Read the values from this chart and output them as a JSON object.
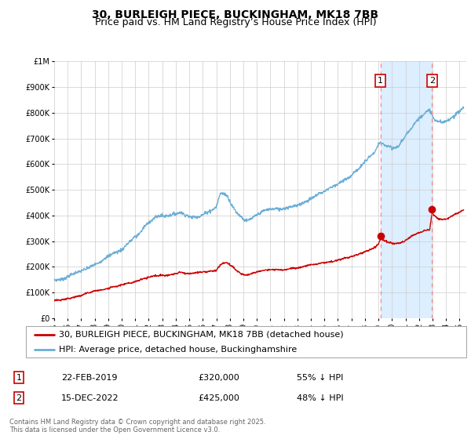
{
  "title": "30, BURLEIGH PIECE, BUCKINGHAM, MK18 7BB",
  "subtitle": "Price paid vs. HM Land Registry’s House Price Index (HPI)",
  "ylim": [
    0,
    1000000
  ],
  "xlim_start": 1995.0,
  "xlim_end": 2025.5,
  "yticks": [
    0,
    100000,
    200000,
    300000,
    400000,
    500000,
    600000,
    700000,
    800000,
    900000,
    1000000
  ],
  "ytick_labels": [
    "£0",
    "£100K",
    "£200K",
    "£300K",
    "£400K",
    "£500K",
    "£600K",
    "£700K",
    "£800K",
    "£900K",
    "£1M"
  ],
  "hpi_color": "#6baed6",
  "price_color": "#cc0000",
  "bg_color": "#ffffff",
  "grid_color": "#cccccc",
  "shade_color": "#ddeeff",
  "dashed_line_color": "#ff8888",
  "point1_year": 2019.14,
  "point2_year": 2022.96,
  "point1_price_marker": 320000,
  "point2_price_marker": 425000,
  "legend_label_red": "30, BURLEIGH PIECE, BUCKINGHAM, MK18 7BB (detached house)",
  "legend_label_blue": "HPI: Average price, detached house, Buckinghamshire",
  "note1_label": "1",
  "note1_date": "22-FEB-2019",
  "note1_price": "£320,000",
  "note1_hpi": "55% ↓ HPI",
  "note2_label": "2",
  "note2_date": "15-DEC-2022",
  "note2_price": "£425,000",
  "note2_hpi": "48% ↓ HPI",
  "copyright_text": "Contains HM Land Registry data © Crown copyright and database right 2025.\nThis data is licensed under the Open Government Licence v3.0.",
  "title_fontsize": 10,
  "subtitle_fontsize": 9,
  "tick_fontsize": 7,
  "legend_fontsize": 8,
  "note_fontsize": 8,
  "hpi_keypoints": [
    [
      1995.0,
      150000
    ],
    [
      1995.5,
      152000
    ],
    [
      1996.0,
      158000
    ],
    [
      1996.5,
      168000
    ],
    [
      1997.0,
      178000
    ],
    [
      1997.5,
      192000
    ],
    [
      1998.0,
      205000
    ],
    [
      1998.5,
      220000
    ],
    [
      1999.0,
      238000
    ],
    [
      1999.5,
      258000
    ],
    [
      2000.0,
      272000
    ],
    [
      2000.5,
      295000
    ],
    [
      2001.0,
      315000
    ],
    [
      2001.5,
      340000
    ],
    [
      2002.0,
      365000
    ],
    [
      2002.5,
      385000
    ],
    [
      2003.0,
      395000
    ],
    [
      2003.5,
      400000
    ],
    [
      2004.0,
      410000
    ],
    [
      2004.3,
      415000
    ],
    [
      2004.6,
      405000
    ],
    [
      2005.0,
      395000
    ],
    [
      2005.5,
      390000
    ],
    [
      2006.0,
      400000
    ],
    [
      2006.5,
      418000
    ],
    [
      2007.0,
      440000
    ],
    [
      2007.3,
      490000
    ],
    [
      2007.8,
      480000
    ],
    [
      2008.0,
      460000
    ],
    [
      2008.5,
      420000
    ],
    [
      2009.0,
      400000
    ],
    [
      2009.3,
      395000
    ],
    [
      2009.6,
      405000
    ],
    [
      2010.0,
      420000
    ],
    [
      2010.5,
      438000
    ],
    [
      2011.0,
      450000
    ],
    [
      2011.5,
      448000
    ],
    [
      2012.0,
      448000
    ],
    [
      2012.5,
      455000
    ],
    [
      2013.0,
      465000
    ],
    [
      2013.5,
      480000
    ],
    [
      2014.0,
      495000
    ],
    [
      2014.5,
      510000
    ],
    [
      2015.0,
      525000
    ],
    [
      2015.5,
      540000
    ],
    [
      2016.0,
      560000
    ],
    [
      2016.5,
      578000
    ],
    [
      2017.0,
      595000
    ],
    [
      2017.5,
      620000
    ],
    [
      2018.0,
      645000
    ],
    [
      2018.5,
      670000
    ],
    [
      2018.8,
      685000
    ],
    [
      2019.0,
      710000
    ],
    [
      2019.14,
      715000
    ],
    [
      2019.5,
      705000
    ],
    [
      2019.8,
      700000
    ],
    [
      2020.0,
      695000
    ],
    [
      2020.3,
      700000
    ],
    [
      2020.6,
      718000
    ],
    [
      2021.0,
      745000
    ],
    [
      2021.5,
      775000
    ],
    [
      2022.0,
      810000
    ],
    [
      2022.5,
      835000
    ],
    [
      2022.8,
      840000
    ],
    [
      2022.96,
      825000
    ],
    [
      2023.0,
      815000
    ],
    [
      2023.2,
      800000
    ],
    [
      2023.5,
      795000
    ],
    [
      2023.8,
      790000
    ],
    [
      2024.0,
      795000
    ],
    [
      2024.5,
      810000
    ],
    [
      2025.0,
      830000
    ],
    [
      2025.3,
      840000
    ]
  ],
  "price_keypoints": [
    [
      1995.0,
      70000
    ],
    [
      1995.5,
      72000
    ],
    [
      1996.0,
      78000
    ],
    [
      1996.5,
      85000
    ],
    [
      1997.0,
      92000
    ],
    [
      1997.5,
      100000
    ],
    [
      1998.0,
      106000
    ],
    [
      1998.5,
      112000
    ],
    [
      1999.0,
      118000
    ],
    [
      1999.5,
      125000
    ],
    [
      2000.0,
      132000
    ],
    [
      2000.5,
      140000
    ],
    [
      2001.0,
      148000
    ],
    [
      2001.5,
      158000
    ],
    [
      2002.0,
      165000
    ],
    [
      2002.5,
      170000
    ],
    [
      2003.0,
      172000
    ],
    [
      2003.5,
      175000
    ],
    [
      2004.0,
      178000
    ],
    [
      2004.3,
      182000
    ],
    [
      2004.6,
      178000
    ],
    [
      2005.0,
      174000
    ],
    [
      2005.5,
      175000
    ],
    [
      2006.0,
      178000
    ],
    [
      2006.5,
      182000
    ],
    [
      2007.0,
      188000
    ],
    [
      2007.3,
      210000
    ],
    [
      2007.6,
      220000
    ],
    [
      2007.8,
      218000
    ],
    [
      2008.0,
      210000
    ],
    [
      2008.4,
      195000
    ],
    [
      2008.8,
      182000
    ],
    [
      2009.0,
      180000
    ],
    [
      2009.3,
      178000
    ],
    [
      2009.6,
      182000
    ],
    [
      2010.0,
      190000
    ],
    [
      2010.5,
      198000
    ],
    [
      2011.0,
      205000
    ],
    [
      2011.5,
      205000
    ],
    [
      2012.0,
      205000
    ],
    [
      2012.5,
      208000
    ],
    [
      2013.0,
      212000
    ],
    [
      2013.5,
      218000
    ],
    [
      2014.0,
      222000
    ],
    [
      2014.5,
      226000
    ],
    [
      2015.0,
      230000
    ],
    [
      2015.5,
      232000
    ],
    [
      2016.0,
      238000
    ],
    [
      2016.5,
      245000
    ],
    [
      2017.0,
      252000
    ],
    [
      2017.5,
      260000
    ],
    [
      2018.0,
      270000
    ],
    [
      2018.5,
      280000
    ],
    [
      2018.8,
      290000
    ],
    [
      2019.0,
      300000
    ],
    [
      2019.14,
      320000
    ],
    [
      2019.3,
      318000
    ],
    [
      2019.5,
      312000
    ],
    [
      2019.8,
      308000
    ],
    [
      2020.0,
      305000
    ],
    [
      2020.3,
      305000
    ],
    [
      2020.6,
      310000
    ],
    [
      2021.0,
      322000
    ],
    [
      2021.5,
      338000
    ],
    [
      2022.0,
      352000
    ],
    [
      2022.5,
      360000
    ],
    [
      2022.8,
      362000
    ],
    [
      2022.96,
      425000
    ],
    [
      2023.1,
      418000
    ],
    [
      2023.3,
      408000
    ],
    [
      2023.5,
      400000
    ],
    [
      2023.8,
      398000
    ],
    [
      2024.0,
      400000
    ],
    [
      2024.5,
      415000
    ],
    [
      2025.0,
      430000
    ],
    [
      2025.3,
      438000
    ]
  ]
}
